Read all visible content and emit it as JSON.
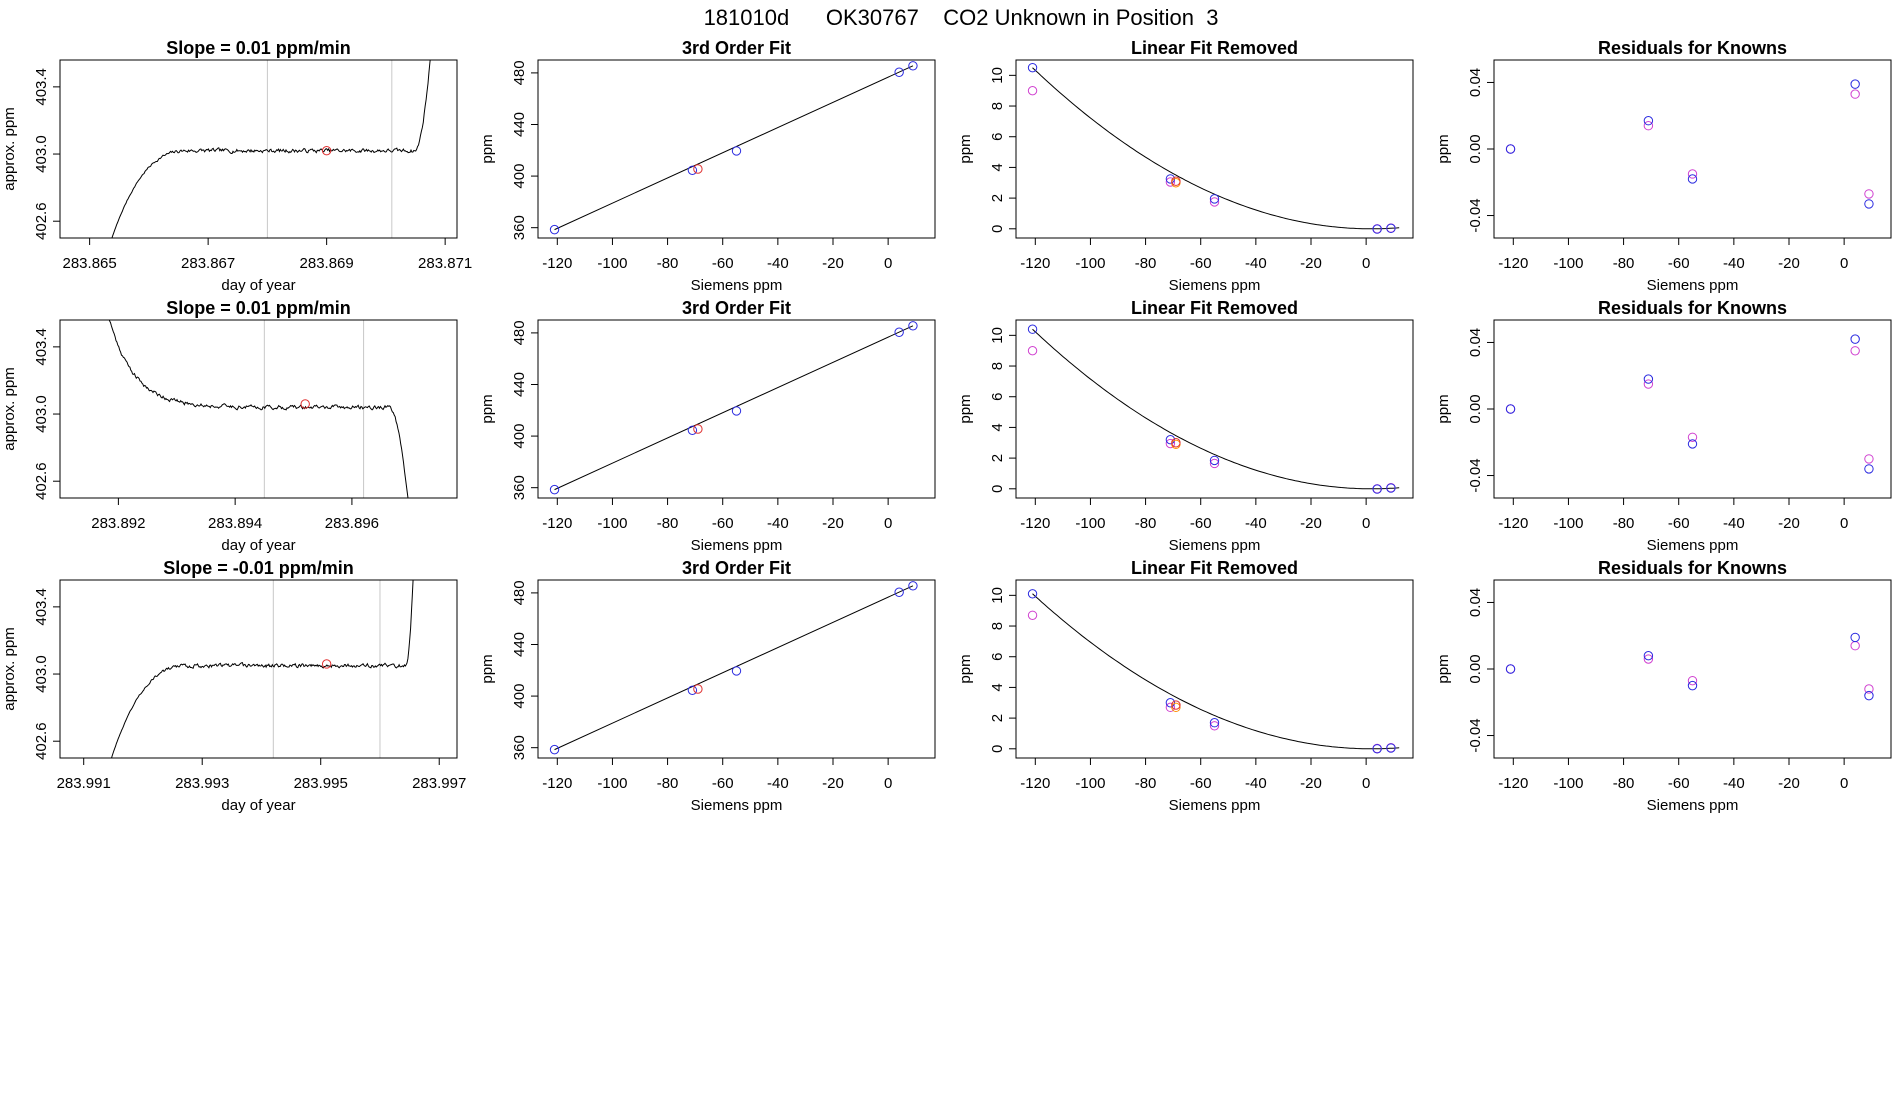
{
  "figure": {
    "title": "181010d      OK30767    CO2 Unknown in Position  3"
  },
  "colors": {
    "known": "#2a2ae0",
    "unknown": "#e03030",
    "residual_alt": "#d040d0",
    "unknown_alt": "#ff8c00",
    "guide": "#c8c8c8"
  },
  "chart_data": [
    {
      "type": "line",
      "role": "time",
      "row": 0,
      "title": "Slope =  0.01  ppm/min",
      "xlabel": "day of year",
      "ylabel": "approx. ppm",
      "xlim": [
        283.8645,
        283.8712
      ],
      "ylim": [
        402.5,
        403.56
      ],
      "xticks": [
        "283.865",
        "283.867",
        "283.869",
        "283.871"
      ],
      "yticks": [
        "402.6",
        "403.0",
        "403.4"
      ],
      "x_start": 283.8652,
      "x_end": 283.87095,
      "rise_end": 283.8667,
      "drop_start": 283.8705,
      "plateau": 403.02,
      "baseline": 402.3,
      "edge": 404.5,
      "vlines": [
        283.868,
        283.8701
      ],
      "points": [
        {
          "x": 283.869,
          "y": 403.02
        }
      ],
      "seed": 7
    },
    {
      "type": "scatter",
      "role": "fit",
      "row": 0,
      "title": "3rd Order Fit",
      "xlabel": "Siemens ppm",
      "ylabel": "ppm",
      "xlim": [
        -127,
        17
      ],
      "ylim": [
        352,
        490
      ],
      "xticks": [
        "-120",
        "-100",
        "-80",
        "-60",
        "-40",
        "-20",
        "0"
      ],
      "yticks": [
        "360",
        "400",
        "440",
        "480"
      ],
      "line": [
        [
          -121,
          358.5
        ],
        [
          9,
          485.5
        ]
      ],
      "known": [
        [
          -121,
          358.5
        ],
        [
          -71,
          404.5
        ],
        [
          -55,
          419.5
        ],
        [
          4,
          480.5
        ],
        [
          9,
          485.5
        ]
      ],
      "unknown": [
        [
          -69,
          405.5
        ]
      ]
    },
    {
      "type": "scatter",
      "role": "linear_removed",
      "row": 0,
      "title": "Linear Fit Removed",
      "xlabel": "Siemens ppm",
      "ylabel": "ppm",
      "xlim": [
        -127,
        17
      ],
      "ylim": [
        -0.6,
        11
      ],
      "xticks": [
        "-120",
        "-100",
        "-80",
        "-60",
        "-40",
        "-20",
        "0"
      ],
      "yticks": [
        "0",
        "2",
        "4",
        "6",
        "8",
        "10"
      ],
      "curve_peak": 10.5,
      "known": [
        [
          -121,
          10.5
        ],
        [
          -71,
          3.25
        ],
        [
          -55,
          1.95
        ],
        [
          4,
          -0.02
        ],
        [
          9,
          0.03
        ]
      ],
      "alt": [
        [
          -121,
          9.0
        ],
        [
          -71,
          3.05
        ],
        [
          -55,
          1.75
        ],
        [
          4,
          0.0
        ],
        [
          9,
          0.05
        ]
      ],
      "unknown": [
        [
          -69,
          3.1
        ]
      ],
      "unknown_alt": [
        [
          -69,
          3.0
        ]
      ]
    },
    {
      "type": "scatter",
      "role": "residuals",
      "row": 0,
      "title": "Residuals for Knowns",
      "xlabel": "Siemens ppm",
      "ylabel": "ppm",
      "xlim": [
        -127,
        17
      ],
      "ylim": [
        -0.0535,
        0.0535
      ],
      "xticks": [
        "-120",
        "-100",
        "-80",
        "-60",
        "-40",
        "-20",
        "0"
      ],
      "yticks": [
        "-0.04",
        "0.00",
        "0.04"
      ],
      "known": [
        [
          -121,
          0.0
        ],
        [
          -71,
          0.017
        ],
        [
          -55,
          -0.018
        ],
        [
          4,
          0.039
        ],
        [
          9,
          -0.033
        ]
      ],
      "alt": [
        [
          -121,
          0.0
        ],
        [
          -71,
          0.014
        ],
        [
          -55,
          -0.015
        ],
        [
          4,
          0.033
        ],
        [
          9,
          -0.027
        ]
      ]
    },
    {
      "type": "line",
      "role": "time",
      "row": 1,
      "title": "Slope =  0.01  ppm/min",
      "xlabel": "day of year",
      "ylabel": "approx. ppm",
      "xlim": [
        283.891,
        283.8978
      ],
      "ylim": [
        402.5,
        403.56
      ],
      "xticks": [
        "283.892",
        "283.894",
        "283.896"
      ],
      "yticks": [
        "402.6",
        "403.0",
        "403.4"
      ],
      "x_start": 283.8915,
      "x_end": 283.8972,
      "decay_start": 283.8915,
      "decay_top": 404.2,
      "decay_rate": 2300,
      "drop_start": 283.89665,
      "plateau": 403.04,
      "baseline": 401.6,
      "vlines": [
        283.8945,
        283.8962
      ],
      "points": [
        {
          "x": 283.8952,
          "y": 403.06
        }
      ],
      "seed": 21
    },
    {
      "type": "scatter",
      "role": "fit",
      "row": 1,
      "title": "3rd Order Fit",
      "xlabel": "Siemens ppm",
      "ylabel": "ppm",
      "xlim": [
        -127,
        17
      ],
      "ylim": [
        352,
        490
      ],
      "xticks": [
        "-120",
        "-100",
        "-80",
        "-60",
        "-40",
        "-20",
        "0"
      ],
      "yticks": [
        "360",
        "400",
        "440",
        "480"
      ],
      "line": [
        [
          -121,
          358.5
        ],
        [
          9,
          485.5
        ]
      ],
      "known": [
        [
          -121,
          358.5
        ],
        [
          -71,
          404.5
        ],
        [
          -55,
          419.5
        ],
        [
          4,
          480.5
        ],
        [
          9,
          485.5
        ]
      ],
      "unknown": [
        [
          -69,
          405.5
        ]
      ]
    },
    {
      "type": "scatter",
      "role": "linear_removed",
      "row": 1,
      "title": "Linear Fit Removed",
      "xlabel": "Siemens ppm",
      "ylabel": "ppm",
      "xlim": [
        -127,
        17
      ],
      "ylim": [
        -0.6,
        11
      ],
      "xticks": [
        "-120",
        "-100",
        "-80",
        "-60",
        "-40",
        "-20",
        "0"
      ],
      "yticks": [
        "0",
        "2",
        "4",
        "6",
        "8",
        "10"
      ],
      "curve_peak": 10.4,
      "known": [
        [
          -121,
          10.4
        ],
        [
          -71,
          3.2
        ],
        [
          -55,
          1.85
        ],
        [
          4,
          -0.02
        ],
        [
          9,
          0.05
        ]
      ],
      "alt": [
        [
          -121,
          9.0
        ],
        [
          -71,
          2.95
        ],
        [
          -55,
          1.65
        ],
        [
          4,
          0.0
        ],
        [
          9,
          0.07
        ]
      ],
      "unknown": [
        [
          -69,
          3.0
        ]
      ],
      "unknown_alt": [
        [
          -69,
          2.9
        ]
      ]
    },
    {
      "type": "scatter",
      "role": "residuals",
      "row": 1,
      "title": "Residuals for Knowns",
      "xlabel": "Siemens ppm",
      "ylabel": "ppm",
      "xlim": [
        -127,
        17
      ],
      "ylim": [
        -0.0535,
        0.0535
      ],
      "xticks": [
        "-120",
        "-100",
        "-80",
        "-60",
        "-40",
        "-20",
        "0"
      ],
      "yticks": [
        "-0.04",
        "0.00",
        "0.04"
      ],
      "known": [
        [
          -121,
          0.0
        ],
        [
          -71,
          0.018
        ],
        [
          -55,
          -0.021
        ],
        [
          4,
          0.042
        ],
        [
          9,
          -0.036
        ]
      ],
      "alt": [
        [
          -121,
          0.0
        ],
        [
          -71,
          0.015
        ],
        [
          -55,
          -0.017
        ],
        [
          4,
          0.035
        ],
        [
          9,
          -0.03
        ]
      ]
    },
    {
      "type": "line",
      "role": "time",
      "row": 2,
      "title": "Slope =  -0.01  ppm/min",
      "xlabel": "day of year",
      "ylabel": "approx. ppm",
      "xlim": [
        283.9906,
        283.9973
      ],
      "ylim": [
        402.5,
        403.56
      ],
      "xticks": [
        "283.991",
        "283.993",
        "283.995",
        "283.997"
      ],
      "yticks": [
        "402.6",
        "403.0",
        "403.4"
      ],
      "x_start": 283.9913,
      "x_end": 283.99665,
      "rise_end": 283.9928,
      "drop_start": 283.99645,
      "plateau": 403.05,
      "baseline": 402.3,
      "edge": 404.5,
      "vlines": [
        283.9942,
        283.996
      ],
      "points": [
        {
          "x": 283.9951,
          "y": 403.06
        }
      ],
      "seed": 43
    },
    {
      "type": "scatter",
      "role": "fit",
      "row": 2,
      "title": "3rd Order Fit",
      "xlabel": "Siemens ppm",
      "ylabel": "ppm",
      "xlim": [
        -127,
        17
      ],
      "ylim": [
        352,
        490
      ],
      "xticks": [
        "-120",
        "-100",
        "-80",
        "-60",
        "-40",
        "-20",
        "0"
      ],
      "yticks": [
        "360",
        "400",
        "440",
        "480"
      ],
      "line": [
        [
          -121,
          358.5
        ],
        [
          9,
          485.5
        ]
      ],
      "known": [
        [
          -121,
          358.5
        ],
        [
          -71,
          404.5
        ],
        [
          -55,
          419.5
        ],
        [
          4,
          480.5
        ],
        [
          9,
          485.5
        ]
      ],
      "unknown": [
        [
          -69,
          405.5
        ]
      ]
    },
    {
      "type": "scatter",
      "role": "linear_removed",
      "row": 2,
      "title": "Linear Fit Removed",
      "xlabel": "Siemens ppm",
      "ylabel": "ppm",
      "xlim": [
        -127,
        17
      ],
      "ylim": [
        -0.6,
        11
      ],
      "xticks": [
        "-120",
        "-100",
        "-80",
        "-60",
        "-40",
        "-20",
        "0"
      ],
      "yticks": [
        "0",
        "2",
        "4",
        "6",
        "8",
        "10"
      ],
      "curve_peak": 10.1,
      "known": [
        [
          -121,
          10.1
        ],
        [
          -71,
          3.0
        ],
        [
          -55,
          1.7
        ],
        [
          4,
          0.0
        ],
        [
          9,
          0.05
        ]
      ],
      "alt": [
        [
          -121,
          8.7
        ],
        [
          -71,
          2.7
        ],
        [
          -55,
          1.5
        ],
        [
          4,
          0.02
        ],
        [
          9,
          0.07
        ]
      ],
      "unknown": [
        [
          -69,
          2.85
        ]
      ],
      "unknown_alt": [
        [
          -69,
          2.7
        ]
      ]
    },
    {
      "type": "scatter",
      "role": "residuals",
      "row": 2,
      "title": "Residuals for Knowns",
      "xlabel": "Siemens ppm",
      "ylabel": "ppm",
      "xlim": [
        -127,
        17
      ],
      "ylim": [
        -0.0535,
        0.0535
      ],
      "xticks": [
        "-120",
        "-100",
        "-80",
        "-60",
        "-40",
        "-20",
        "0"
      ],
      "yticks": [
        "-0.04",
        "0.00",
        "0.04"
      ],
      "known": [
        [
          -121,
          0.0
        ],
        [
          -71,
          0.008
        ],
        [
          -55,
          -0.01
        ],
        [
          4,
          0.019
        ],
        [
          9,
          -0.016
        ]
      ],
      "alt": [
        [
          -121,
          0.0
        ],
        [
          -71,
          0.006
        ],
        [
          -55,
          -0.007
        ],
        [
          4,
          0.014
        ],
        [
          9,
          -0.012
        ]
      ]
    }
  ]
}
